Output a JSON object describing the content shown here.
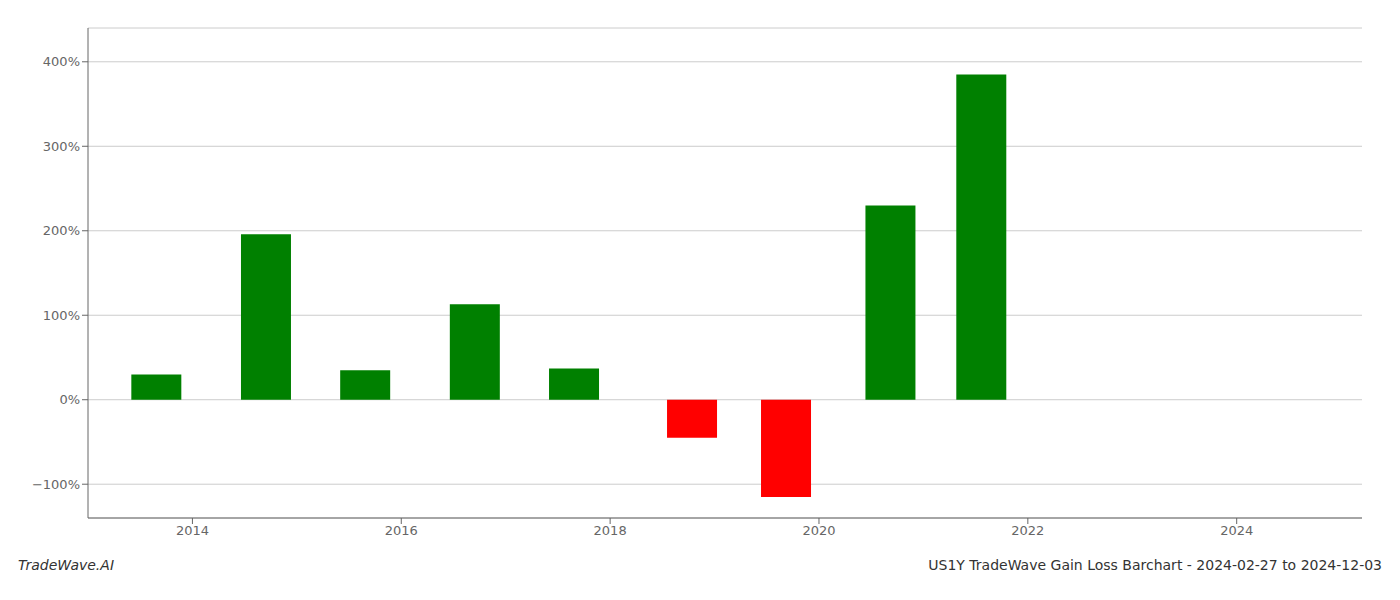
{
  "chart_data": {
    "type": "bar",
    "title": "US1Y TradeWave Gain Loss Barchart - 2024-02-27 to 2024-12-03",
    "annotations": [
      "TradeWave.AI"
    ],
    "x": [
      2013.65,
      2014.7,
      2015.65,
      2016.7,
      2017.65,
      2018.78,
      2019.68,
      2020.68,
      2021.55,
      2022.25
    ],
    "values": [
      30,
      196,
      35,
      113,
      37,
      -45,
      -115,
      230,
      385,
      0
    ],
    "colors": [
      "#008000",
      "#008000",
      "#008000",
      "#008000",
      "#008000",
      "#ff0000",
      "#ff0000",
      "#008000",
      "#008000",
      "#008000"
    ],
    "xlim": [
      2013.0,
      2025.2
    ],
    "xticks": [
      2014,
      2016,
      2018,
      2020,
      2022,
      2024
    ],
    "ylim": [
      -140,
      440
    ],
    "yticks": [
      {
        "value": -100,
        "label": "−100%"
      },
      {
        "value": 0,
        "label": "0%"
      },
      {
        "value": 100,
        "label": "100%"
      },
      {
        "value": 200,
        "label": "200%"
      },
      {
        "value": 300,
        "label": "300%"
      },
      {
        "value": 400,
        "label": "400%"
      }
    ],
    "grid": true
  }
}
